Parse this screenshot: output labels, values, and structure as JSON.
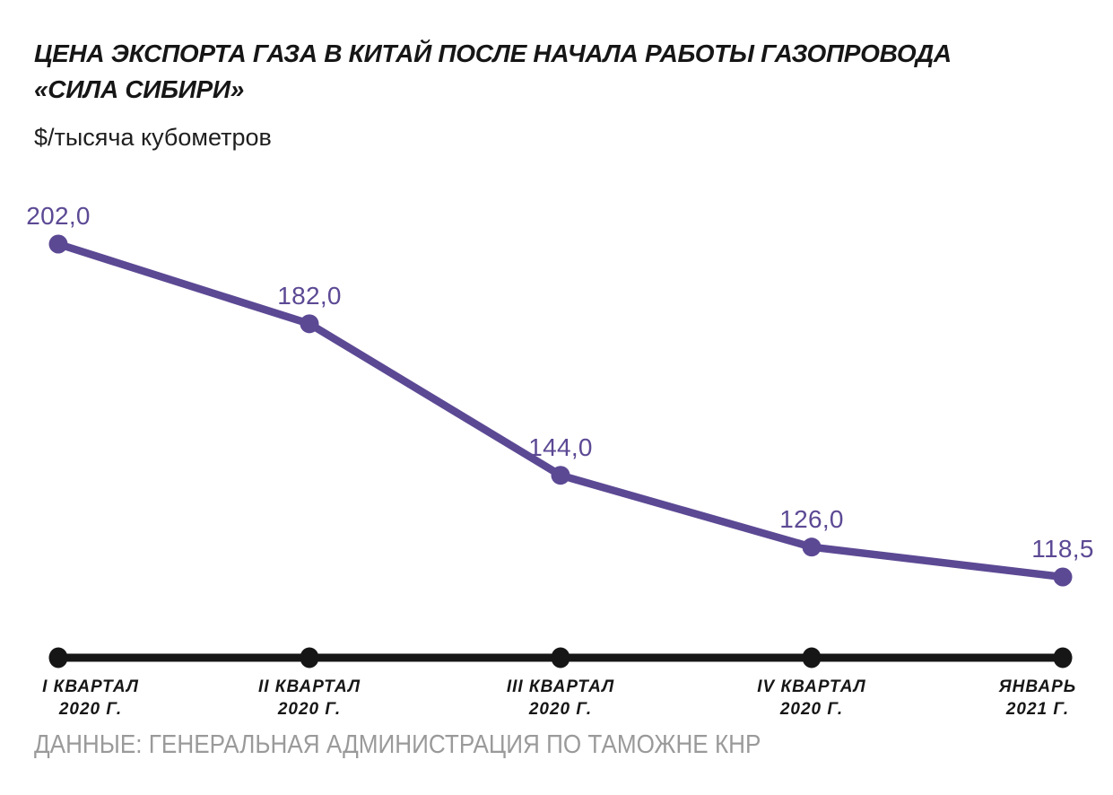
{
  "page": {
    "title_lines": [
      "ЦЕНА ЭКСПОРТА ГАЗА В КИТАЙ ПОСЛЕ НАЧАЛА РАБОТЫ ГАЗОПРОВОДА",
      "«СИЛА СИБИРИ»"
    ],
    "unit_label": "$/тысяча кубометров",
    "source": "ДАННЫЕ: ГЕНЕРАЛЬНАЯ АДМИНИСТРАЦИЯ ПО ТАМОЖНЕ КНР"
  },
  "colors": {
    "line": "#5c4994",
    "axis": "#161616",
    "text": "#161616",
    "source": "#9a9a9a",
    "background": "#ffffff"
  },
  "chart_data": {
    "type": "line",
    "title": "ЦЕНА ЭКСПОРТА ГАЗА В КИТАЙ ПОСЛЕ НАЧАЛА РАБОТЫ ГАЗОПРОВОДА «СИЛА СИБИРИ»",
    "ylabel": "$/тысяча кубометров",
    "categories": [
      "I квартал 2020 г.",
      "II квартал 2020 г.",
      "III квартал 2020 г.",
      "IV квартал 2020 г.",
      "Январь 2021 г."
    ],
    "category_labels": [
      [
        "I КВАРТАЛ",
        "2020 Г."
      ],
      [
        "II КВАРТАЛ",
        "2020 Г."
      ],
      [
        "III КВАРТАЛ",
        "2020 Г."
      ],
      [
        "IV КВАРТАЛ",
        "2020 Г."
      ],
      [
        "ЯНВАРЬ",
        "2021 Г."
      ]
    ],
    "values": [
      202.0,
      182.0,
      144.0,
      126.0,
      118.5
    ],
    "value_labels": [
      "202,0",
      "182,0",
      "144,0",
      "126,0",
      "118,5"
    ],
    "ylim": [
      118.5,
      202.0
    ],
    "grid": false,
    "legend": false,
    "marker": "circle",
    "source": "ДАННЫЕ: ГЕНЕРАЛЬНАЯ АДМИНИСТРАЦИЯ ПО ТАМОЖНЕ КНР"
  }
}
